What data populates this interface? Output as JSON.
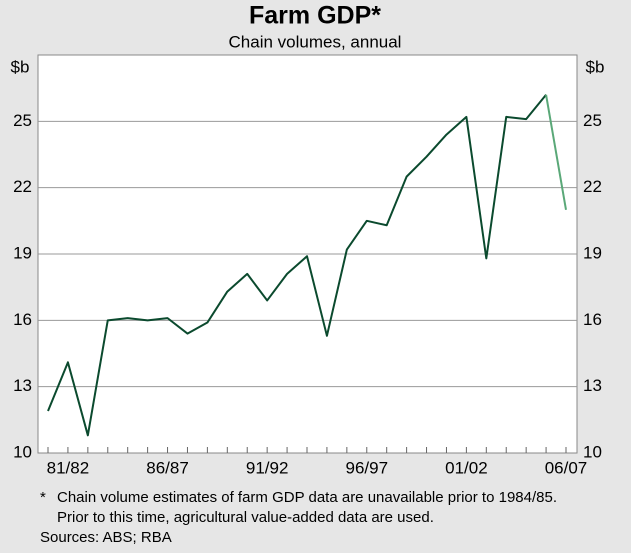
{
  "chart_data": {
    "type": "line",
    "title": "Farm GDP*",
    "subtitle": "Chain volumes, annual",
    "y_unit": "$b",
    "y2_unit": "$b",
    "categories": [
      null,
      "81/82",
      null,
      null,
      null,
      null,
      "86/87",
      null,
      null,
      null,
      null,
      "91/92",
      null,
      null,
      null,
      null,
      "96/97",
      null,
      null,
      null,
      null,
      "01/02",
      null,
      null,
      null,
      null,
      "06/07"
    ],
    "series": [
      {
        "color": "#0b4a2e",
        "values": [
          11.9,
          14.1,
          10.8,
          16.0,
          16.1,
          16.0,
          16.1,
          15.4,
          15.9,
          17.3,
          18.1,
          16.9,
          18.1,
          18.9,
          15.3,
          19.2,
          20.5,
          20.3,
          22.5,
          23.4,
          24.4,
          25.2,
          18.8,
          25.2,
          25.1,
          26.2,
          null
        ]
      },
      {
        "color": "#5aa878",
        "values": [
          null,
          null,
          null,
          null,
          null,
          null,
          null,
          null,
          null,
          null,
          null,
          null,
          null,
          null,
          null,
          null,
          null,
          null,
          null,
          null,
          null,
          null,
          null,
          null,
          null,
          26.2,
          21.0
        ]
      }
    ],
    "ylim": [
      10,
      28
    ],
    "yticks": [
      10,
      13,
      16,
      19,
      22,
      25
    ],
    "y2lim": [
      10,
      28
    ],
    "y2ticks": [
      10,
      13,
      16,
      19,
      22,
      25
    ],
    "grid": true,
    "footnote": "Chain volume estimates of farm GDP data are unavailable prior to 1984/85.",
    "footnote_line2": "Prior to this time, agricultural value-added data are used.",
    "footnote_marker": "*",
    "sources": "Sources: ABS; RBA"
  }
}
